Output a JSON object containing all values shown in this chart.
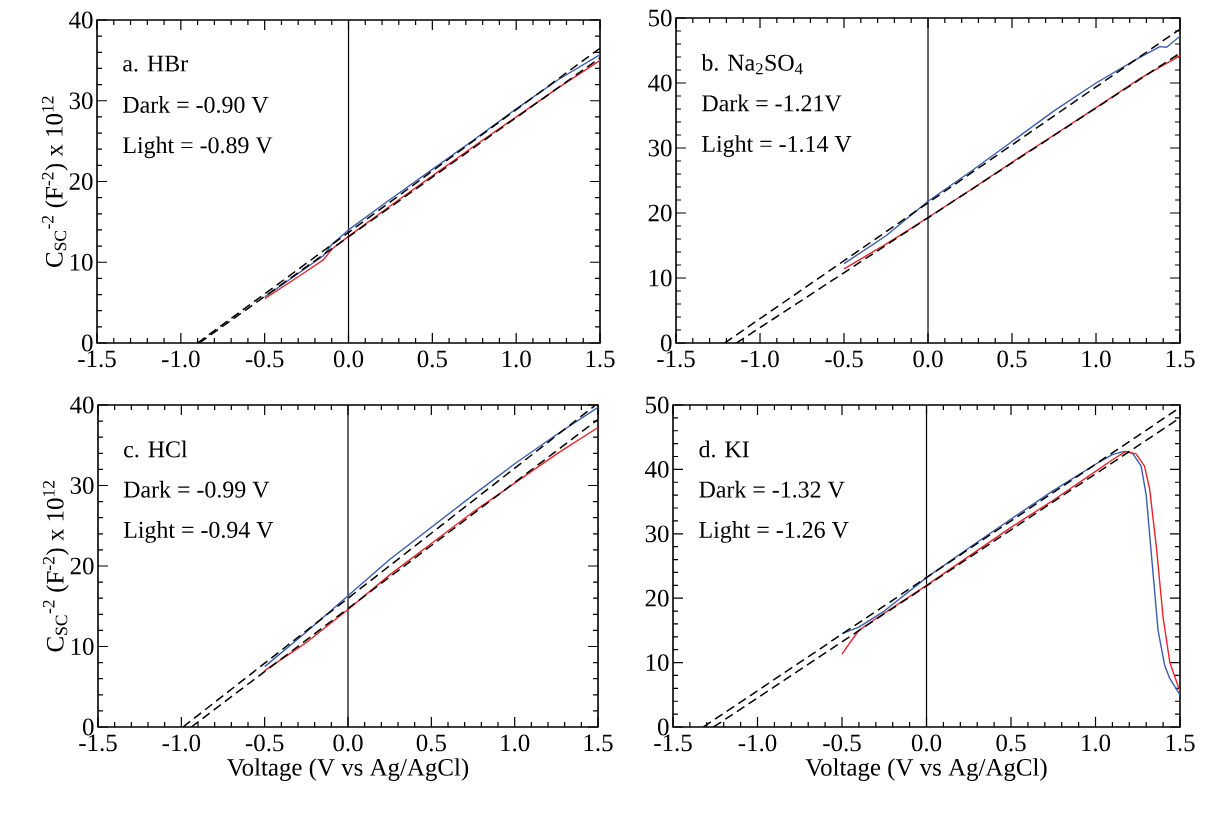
{
  "chart_data": [
    {
      "type": "line",
      "ylabel": "C$_{SC}$$^{-2}$ (F$^{-2}$) x 10$^{12}$",
      "xlim": [
        -1.5,
        1.5
      ],
      "ylim": [
        0,
        40
      ],
      "xticks": [
        {
          "value": -1.5,
          "label": "-1.5"
        },
        {
          "value": -1.0,
          "label": "-1.0"
        },
        {
          "value": -0.5,
          "label": "-0.5"
        },
        {
          "value": 0,
          "label": "0.0"
        },
        {
          "value": 0.5,
          "label": "0.5"
        },
        {
          "value": 1.0,
          "label": "1.0"
        },
        {
          "value": 1.5,
          "label": "1.5"
        }
      ],
      "yticks": [
        0,
        10,
        20,
        30,
        40
      ],
      "annotations": [
        "a. HBr",
        "Dark = -0.90 V",
        "Light = -0.89 V"
      ],
      "ref_lines": [
        {
          "axis": "x",
          "value": 0
        }
      ],
      "series": [
        {
          "color": "#3a5dae",
          "line_style": "solid",
          "x": [
            -0.5,
            -0.3,
            -0.15,
            -0.1,
            0,
            0.25,
            0.5,
            0.75,
            1.0,
            1.25,
            1.5
          ],
          "values": [
            5.7,
            8.6,
            10.8,
            12.2,
            14,
            17.8,
            21.5,
            25.2,
            29,
            32.6,
            35.7
          ]
        },
        {
          "color": "#e8232a",
          "line_style": "solid",
          "x": [
            -0.5,
            -0.3,
            -0.15,
            -0.1,
            0,
            0.25,
            0.5,
            0.75,
            1.0,
            1.25,
            1.5
          ],
          "values": [
            5.5,
            8.2,
            10.3,
            11.6,
            13.2,
            17,
            20.7,
            24.4,
            28,
            31.6,
            35
          ]
        },
        {
          "color": "#000000",
          "line_style": "dashed",
          "x": [
            -0.9,
            1.5
          ],
          "values": [
            0,
            36.5
          ]
        },
        {
          "color": "#000000",
          "line_style": "dashed",
          "x": [
            -0.89,
            1.5
          ],
          "values": [
            0,
            35.3
          ]
        }
      ]
    },
    {
      "type": "line",
      "xlim": [
        -1.5,
        1.5
      ],
      "ylim": [
        0,
        50
      ],
      "xticks": [
        {
          "value": -1.5,
          "label": "-1.5"
        },
        {
          "value": -1.0,
          "label": "-1.0"
        },
        {
          "value": -0.5,
          "label": "-0.5"
        },
        {
          "value": 0,
          "label": "0.0"
        },
        {
          "value": 0.5,
          "label": "0.5"
        },
        {
          "value": 1.0,
          "label": "1.0"
        },
        {
          "value": 1.5,
          "label": "1.5"
        }
      ],
      "yticks": [
        0,
        10,
        20,
        30,
        40,
        50
      ],
      "annotations": [
        "b. Na$_{2}$SO$_{4}$",
        "Dark = -1.21V",
        "Light = -1.14 V"
      ],
      "ref_lines": [
        {
          "axis": "x",
          "value": 0
        }
      ],
      "series": [
        {
          "color": "#3a5dae",
          "line_style": "solid",
          "x": [
            -0.5,
            -0.25,
            0,
            0.25,
            0.5,
            0.75,
            1.0,
            1.25,
            1.38,
            1.42,
            1.5
          ],
          "values": [
            12.2,
            16.5,
            21.8,
            26.3,
            31,
            35.7,
            40,
            43.8,
            45.6,
            45.5,
            47.2
          ]
        },
        {
          "color": "#e8232a",
          "line_style": "solid",
          "x": [
            -0.5,
            -0.25,
            0,
            0.25,
            0.5,
            0.75,
            1.0,
            1.25,
            1.5
          ],
          "values": [
            11.4,
            15.2,
            19.3,
            23.5,
            27.8,
            32,
            36.2,
            40.5,
            44.2
          ]
        },
        {
          "color": "#000000",
          "line_style": "dashed",
          "x": [
            -1.21,
            1.5
          ],
          "values": [
            0,
            48.3
          ]
        },
        {
          "color": "#000000",
          "line_style": "dashed",
          "x": [
            -1.14,
            1.5
          ],
          "values": [
            0,
            44.6
          ]
        }
      ]
    },
    {
      "type": "line",
      "xlabel": "Voltage (V vs Ag/AgCl)",
      "ylabel": "C$_{SC}$$^{-2}$ (F$^{-2}$) x 10$^{12}$",
      "xlim": [
        -1.5,
        1.5
      ],
      "ylim": [
        0,
        40
      ],
      "xticks": [
        {
          "value": -1.5,
          "label": "-1.5"
        },
        {
          "value": -1.0,
          "label": "-1.0"
        },
        {
          "value": -0.5,
          "label": "-0.5"
        },
        {
          "value": 0,
          "label": "0.0"
        },
        {
          "value": 0.5,
          "label": "0.5"
        },
        {
          "value": 1.0,
          "label": "1.0"
        },
        {
          "value": 1.5,
          "label": "1.5"
        }
      ],
      "yticks": [
        0,
        10,
        20,
        30,
        40
      ],
      "annotations": [
        "c. HCl",
        "Dark = -0.99 V",
        "Light = -0.94 V"
      ],
      "ref_lines": [
        {
          "axis": "x",
          "value": 0
        }
      ],
      "series": [
        {
          "color": "#3a5dae",
          "line_style": "solid",
          "x": [
            -0.5,
            -0.25,
            0,
            0.25,
            0.5,
            0.75,
            1.0,
            1.25,
            1.5
          ],
          "values": [
            7.5,
            11.8,
            16.3,
            20.8,
            24.8,
            28.8,
            32.7,
            36.3,
            39.7
          ]
        },
        {
          "color": "#e8232a",
          "line_style": "solid",
          "x": [
            -0.5,
            -0.3,
            -0.25,
            0,
            0.25,
            0.5,
            0.75,
            1.0,
            1.25,
            1.5
          ],
          "values": [
            7,
            9.8,
            10.5,
            14.6,
            18.9,
            22.8,
            26.7,
            30.3,
            33.9,
            37.2
          ]
        },
        {
          "color": "#000000",
          "line_style": "dashed",
          "x": [
            -0.99,
            1.48
          ],
          "values": [
            0,
            39.9
          ]
        },
        {
          "color": "#000000",
          "line_style": "dashed",
          "x": [
            -0.94,
            1.5
          ],
          "values": [
            0,
            38.2
          ]
        }
      ]
    },
    {
      "type": "line",
      "xlabel": "Voltage (V vs Ag/AgCl)",
      "xlim": [
        -1.5,
        1.5
      ],
      "ylim": [
        0,
        50
      ],
      "xticks": [
        {
          "value": -1.5,
          "label": "-1.5"
        },
        {
          "value": -1.0,
          "label": "-1.0"
        },
        {
          "value": -0.5,
          "label": "-0.5"
        },
        {
          "value": 0,
          "label": "0.0"
        },
        {
          "value": 0.5,
          "label": "0.5"
        },
        {
          "value": 1.0,
          "label": "1.0"
        },
        {
          "value": 1.5,
          "label": "1.5"
        }
      ],
      "yticks": [
        0,
        10,
        20,
        30,
        40,
        50
      ],
      "annotations": [
        "d. KI",
        "Dark = -1.32 V",
        "Light = -1.26 V"
      ],
      "ref_lines": [
        {
          "axis": "x",
          "value": 0
        }
      ],
      "series": [
        {
          "color": "#3a5dae",
          "line_style": "solid",
          "x": [
            -0.5,
            -0.4,
            -0.25,
            0,
            0.25,
            0.5,
            0.75,
            1.0,
            1.1,
            1.17,
            1.22,
            1.27,
            1.3,
            1.33,
            1.37,
            1.41,
            1.44,
            1.5
          ],
          "values": [
            14.5,
            15.5,
            18,
            23.2,
            27.8,
            32.3,
            36.7,
            40.8,
            42.3,
            42.8,
            42.5,
            40.5,
            36,
            27,
            15,
            9.5,
            7.5,
            5
          ]
        },
        {
          "color": "#e8232a",
          "line_style": "solid",
          "x": [
            -0.5,
            -0.45,
            -0.4,
            -0.3,
            0,
            0.25,
            0.5,
            0.75,
            1.0,
            1.1,
            1.18,
            1.24,
            1.29,
            1.32,
            1.36,
            1.4,
            1.44,
            1.5
          ],
          "values": [
            11.3,
            13.2,
            15,
            16.8,
            22,
            26.5,
            31,
            35.2,
            39.7,
            41.5,
            42.8,
            42.4,
            40.5,
            37,
            28,
            17,
            10,
            5.5
          ]
        },
        {
          "color": "#000000",
          "line_style": "dashed",
          "x": [
            -1.32,
            1.5
          ],
          "values": [
            0,
            49.6
          ]
        },
        {
          "color": "#000000",
          "line_style": "dashed",
          "x": [
            -1.26,
            1.5
          ],
          "values": [
            0,
            48
          ]
        }
      ]
    }
  ]
}
